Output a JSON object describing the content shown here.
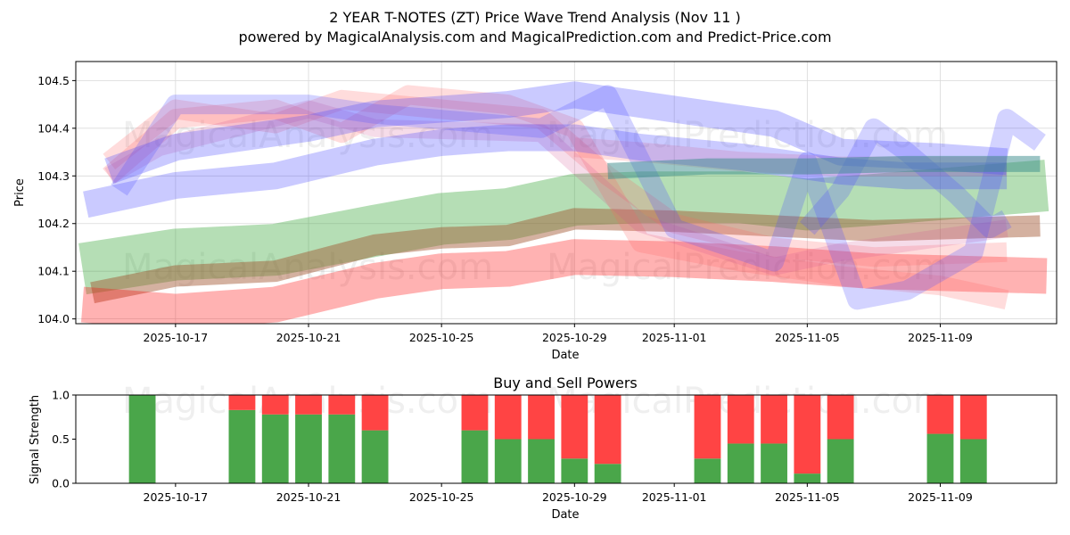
{
  "chart_data": [
    {
      "type": "area",
      "title": "2 YEAR T-NOTES (ZT) Price Wave Trend Analysis (Nov 11 )",
      "subtitle": "powered by MagicalAnalysis.com and MagicalPrediction.com and Predict-Price.com",
      "xlabel": "Date",
      "ylabel": "Price",
      "xlim": [
        "2025-10-14",
        "2025-11-12.5"
      ],
      "ylim": [
        103.99,
        104.54
      ],
      "x_ticks": [
        "2025-10-17",
        "2025-10-21",
        "2025-10-25",
        "2025-10-29",
        "2025-11-01",
        "2025-11-05",
        "2025-11-09"
      ],
      "y_ticks": [
        104.0,
        104.1,
        104.2,
        104.3,
        104.4,
        104.5
      ],
      "watermarks": [
        "MagicalAnalysis.com",
        "MagicalPrediction.com"
      ],
      "series": [
        {
          "name": "green band",
          "color": "#2ca02c",
          "opacity": 0.35,
          "width": 58,
          "points": [
            [
              "2025-10-14.2",
              104.105
            ],
            [
              "2025-10-17",
              104.135
            ],
            [
              "2025-10-20",
              104.145
            ],
            [
              "2025-10-23",
              104.185
            ],
            [
              "2025-10-25",
              104.21
            ],
            [
              "2025-10-27",
              104.22
            ],
            [
              "2025-10-29",
              104.25
            ],
            [
              "2025-10-31",
              104.255
            ],
            [
              "2025-11-03",
              104.255
            ],
            [
              "2025-11-05",
              104.24
            ],
            [
              "2025-11-07",
              104.25
            ],
            [
              "2025-11-12.2",
              104.28
            ]
          ]
        },
        {
          "name": "olive band",
          "color": "#a0522d",
          "opacity": 0.45,
          "width": 24,
          "points": [
            [
              "2025-10-14.5",
              104.055
            ],
            [
              "2025-10-17",
              104.09
            ],
            [
              "2025-10-20",
              104.1
            ],
            [
              "2025-10-23",
              104.155
            ],
            [
              "2025-10-25",
              104.17
            ],
            [
              "2025-10-27",
              104.175
            ],
            [
              "2025-10-29",
              104.21
            ],
            [
              "2025-11-01",
              104.205
            ],
            [
              "2025-11-04",
              104.195
            ],
            [
              "2025-11-07",
              104.185
            ],
            [
              "2025-11-12",
              104.195
            ]
          ]
        },
        {
          "name": "red band low",
          "color": "#ff0000",
          "opacity": 0.3,
          "width": 40,
          "points": [
            [
              "2025-10-14.2",
              104.03
            ],
            [
              "2025-10-17",
              104.015
            ],
            [
              "2025-10-20",
              104.03
            ],
            [
              "2025-10-23",
              104.08
            ],
            [
              "2025-10-25",
              104.1
            ],
            [
              "2025-10-27",
              104.105
            ],
            [
              "2025-10-29",
              104.13
            ],
            [
              "2025-11-01",
              104.125
            ],
            [
              "2025-11-04",
              104.115
            ],
            [
              "2025-11-07",
              104.1
            ],
            [
              "2025-11-12.2",
              104.09
            ]
          ]
        },
        {
          "name": "red bundle upper",
          "color": "#ff6060",
          "opacity": 0.22,
          "width": 22,
          "points": [
            [
              "2025-10-15",
              104.3
            ],
            [
              "2025-10-17",
              104.42
            ],
            [
              "2025-10-20",
              104.44
            ],
            [
              "2025-10-22",
              104.39
            ],
            [
              "2025-10-24",
              104.47
            ],
            [
              "2025-10-27",
              104.45
            ],
            [
              "2025-10-29",
              104.4
            ],
            [
              "2025-10-31",
              104.16
            ],
            [
              "2025-11-03",
              104.12
            ],
            [
              "2025-11-06",
              104.09
            ],
            [
              "2025-11-09",
              104.07
            ],
            [
              "2025-11-11",
              104.04
            ]
          ]
        },
        {
          "name": "red bundle mid",
          "color": "#ff6060",
          "opacity": 0.22,
          "width": 22,
          "points": [
            [
              "2025-10-15",
              104.33
            ],
            [
              "2025-10-17",
              104.44
            ],
            [
              "2025-10-20",
              104.41
            ],
            [
              "2025-10-22",
              104.46
            ],
            [
              "2025-10-25",
              104.44
            ],
            [
              "2025-10-28",
              104.42
            ],
            [
              "2025-10-30",
              104.3
            ],
            [
              "2025-11-01",
              104.2
            ],
            [
              "2025-11-04",
              104.15
            ],
            [
              "2025-11-07",
              104.13
            ],
            [
              "2025-11-11",
              104.14
            ]
          ]
        },
        {
          "name": "red bundle trend",
          "color": "#ff6060",
          "opacity": 0.2,
          "width": 22,
          "points": [
            [
              "2025-10-29",
              104.36
            ],
            [
              "2025-10-31",
              104.35
            ],
            [
              "2025-11-03",
              104.33
            ],
            [
              "2025-11-06",
              104.32
            ],
            [
              "2025-11-11",
              104.32
            ]
          ]
        },
        {
          "name": "pink swings",
          "color": "#d05090",
          "opacity": 0.2,
          "width": 20,
          "points": [
            [
              "2025-10-15",
              104.3
            ],
            [
              "2025-10-16.5",
              104.36
            ],
            [
              "2025-10-21",
              104.44
            ],
            [
              "2025-10-23",
              104.4
            ],
            [
              "2025-10-28",
              104.39
            ],
            [
              "2025-10-31",
              104.2
            ],
            [
              "2025-11-04",
              104.11
            ],
            [
              "2025-11-06",
              104.14
            ],
            [
              "2025-11-09",
              104.17
            ],
            [
              "2025-11-11",
              104.19
            ]
          ]
        },
        {
          "name": "blue band upper",
          "color": "#4040ff",
          "opacity": 0.28,
          "width": 30,
          "points": [
            [
              "2025-10-15",
              104.31
            ],
            [
              "2025-10-17",
              104.36
            ],
            [
              "2025-10-21",
              104.4
            ],
            [
              "2025-10-23",
              104.43
            ],
            [
              "2025-10-27",
              104.45
            ],
            [
              "2025-10-29",
              104.47
            ],
            [
              "2025-11-01",
              104.44
            ],
            [
              "2025-11-04",
              104.41
            ],
            [
              "2025-11-06",
              104.35
            ],
            [
              "2025-11-09",
              104.34
            ],
            [
              "2025-11-11",
              104.33
            ]
          ]
        },
        {
          "name": "blue band lower",
          "color": "#4040ff",
          "opacity": 0.28,
          "width": 30,
          "points": [
            [
              "2025-10-14.3",
              104.24
            ],
            [
              "2025-10-17",
              104.28
            ],
            [
              "2025-10-20",
              104.3
            ],
            [
              "2025-10-23",
              104.35
            ],
            [
              "2025-10-25",
              104.37
            ],
            [
              "2025-10-27",
              104.38
            ],
            [
              "2025-10-29",
              104.38
            ],
            [
              "2025-10-31",
              104.36
            ],
            [
              "2025-11-03",
              104.34
            ],
            [
              "2025-11-06",
              104.31
            ],
            [
              "2025-11-08",
              104.3
            ],
            [
              "2025-11-11",
              104.3
            ]
          ]
        },
        {
          "name": "blue swings",
          "color": "#5050ff",
          "opacity": 0.25,
          "width": 22,
          "points": [
            [
              "2025-10-15.3",
              104.27
            ],
            [
              "2025-10-17",
              104.45
            ],
            [
              "2025-10-21",
              104.45
            ],
            [
              "2025-10-23",
              104.43
            ],
            [
              "2025-10-28",
              104.4
            ],
            [
              "2025-10-30",
              104.47
            ],
            [
              "2025-11-01",
              104.19
            ],
            [
              "2025-11-04",
              104.12
            ],
            [
              "2025-11-05",
              104.33
            ],
            [
              "2025-11-06.5",
              104.04
            ],
            [
              "2025-11-08",
              104.06
            ],
            [
              "2025-11-10",
              104.14
            ],
            [
              "2025-11-11",
              104.42
            ],
            [
              "2025-11-12",
              104.37
            ]
          ]
        },
        {
          "name": "blue late loop",
          "color": "#5050ff",
          "opacity": 0.25,
          "width": 22,
          "points": [
            [
              "2025-11-05",
              104.19
            ],
            [
              "2025-11-06",
              104.27
            ],
            [
              "2025-11-07",
              104.4
            ],
            [
              "2025-11-08",
              104.35
            ],
            [
              "2025-11-09.5",
              104.26
            ],
            [
              "2025-11-10.5",
              104.19
            ],
            [
              "2025-11-11",
              104.21
            ]
          ]
        },
        {
          "name": "teal band",
          "color": "#3a8c8c",
          "opacity": 0.5,
          "width": 18,
          "points": [
            [
              "2025-10-30",
              104.31
            ],
            [
              "2025-11-02",
              104.32
            ],
            [
              "2025-11-05",
              104.32
            ],
            [
              "2025-11-08",
              104.325
            ],
            [
              "2025-11-12",
              104.325
            ]
          ]
        }
      ]
    },
    {
      "type": "bar",
      "title": "Buy and Sell Powers",
      "xlabel": "Date",
      "ylabel": "Signal Strength",
      "xlim": [
        "2025-10-14",
        "2025-11-12.5"
      ],
      "ylim": [
        0,
        1.0
      ],
      "x_ticks": [
        "2025-10-17",
        "2025-10-21",
        "2025-10-25",
        "2025-10-29",
        "2025-11-01",
        "2025-11-05",
        "2025-11-09"
      ],
      "y_ticks": [
        0.0,
        0.5,
        1.0
      ],
      "watermarks": [
        "MagicalAnalysis.com",
        "MagicalPrediction.com"
      ],
      "colors": {
        "buy": "#4aa64a",
        "sell": "#ff4444"
      },
      "categories": [
        "2025-10-16",
        "2025-10-19",
        "2025-10-20",
        "2025-10-21",
        "2025-10-22",
        "2025-10-23",
        "2025-10-26",
        "2025-10-27",
        "2025-10-28",
        "2025-10-29",
        "2025-10-30",
        "2025-11-02",
        "2025-11-03",
        "2025-11-04",
        "2025-11-05",
        "2025-11-06",
        "2025-11-09",
        "2025-11-10"
      ],
      "series": [
        {
          "name": "Buy",
          "values": [
            1.0,
            0.83,
            0.78,
            0.78,
            0.78,
            0.6,
            0.6,
            0.5,
            0.5,
            0.28,
            0.22,
            0.28,
            0.45,
            0.45,
            0.11,
            0.5,
            0.56,
            0.5
          ]
        },
        {
          "name": "Sell",
          "values": [
            0.0,
            0.17,
            0.22,
            0.22,
            0.22,
            0.4,
            0.4,
            0.5,
            0.5,
            0.72,
            0.78,
            0.72,
            0.55,
            0.55,
            0.89,
            0.5,
            0.44,
            0.5
          ]
        }
      ]
    }
  ]
}
